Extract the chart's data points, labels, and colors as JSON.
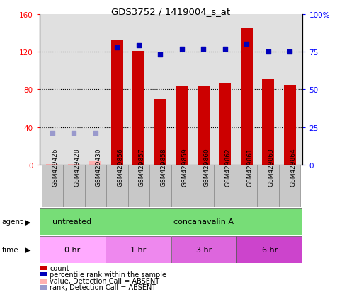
{
  "title": "GDS3752 / 1419004_s_at",
  "samples": [
    "GSM429426",
    "GSM429428",
    "GSM429430",
    "GSM429856",
    "GSM429857",
    "GSM429858",
    "GSM429859",
    "GSM429860",
    "GSM429862",
    "GSM429861",
    "GSM429863",
    "GSM429864"
  ],
  "count_values": [
    1,
    1,
    4,
    132,
    121,
    70,
    83,
    83,
    86,
    145,
    91,
    85
  ],
  "count_absent": [
    true,
    true,
    true,
    false,
    false,
    false,
    false,
    false,
    false,
    false,
    false,
    false
  ],
  "percentile_values": [
    21,
    21,
    21,
    78,
    79,
    73,
    77,
    77,
    77,
    80,
    75,
    75
  ],
  "percentile_absent": [
    true,
    true,
    true,
    false,
    false,
    false,
    false,
    false,
    false,
    false,
    false,
    false
  ],
  "ylim_left": [
    0,
    160
  ],
  "ylim_right": [
    0,
    100
  ],
  "yticks_left": [
    0,
    40,
    80,
    120,
    160
  ],
  "yticks_right": [
    0,
    25,
    50,
    75,
    100
  ],
  "ytick_labels_left": [
    "0",
    "40",
    "80",
    "120",
    "160"
  ],
  "ytick_labels_right": [
    "0",
    "25",
    "50",
    "75",
    "100%"
  ],
  "agent_groups": [
    {
      "label": "untreated",
      "start": 0,
      "end": 3,
      "color": "#77DD77"
    },
    {
      "label": "concanavalin A",
      "start": 3,
      "end": 12,
      "color": "#77DD77"
    }
  ],
  "time_groups": [
    {
      "label": "0 hr",
      "start": 0,
      "end": 3,
      "color": "#FFAAFF"
    },
    {
      "label": "1 hr",
      "start": 3,
      "end": 6,
      "color": "#EE88EE"
    },
    {
      "label": "3 hr",
      "start": 6,
      "end": 9,
      "color": "#DD66DD"
    },
    {
      "label": "6 hr",
      "start": 9,
      "end": 12,
      "color": "#CC44CC"
    }
  ],
  "bar_color": "#CC0000",
  "bar_absent_color": "#FFB0B0",
  "dot_color": "#0000BB",
  "dot_absent_color": "#9999CC",
  "bar_width": 0.55,
  "bg_color": "#FFFFFF",
  "plot_bg_color": "#E0E0E0",
  "sample_box_color": "#C8C8C8",
  "legend_items": [
    {
      "color": "#CC0000",
      "label": "count",
      "marker": "s"
    },
    {
      "color": "#0000BB",
      "label": "percentile rank within the sample",
      "marker": "s"
    },
    {
      "color": "#FFB0B0",
      "label": "value, Detection Call = ABSENT",
      "marker": "s"
    },
    {
      "color": "#9999CC",
      "label": "rank, Detection Call = ABSENT",
      "marker": "s"
    }
  ]
}
